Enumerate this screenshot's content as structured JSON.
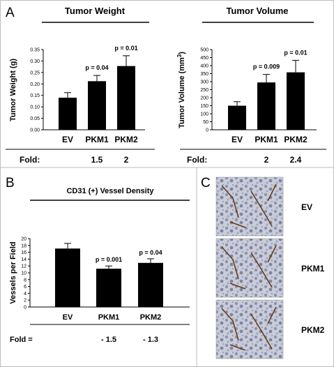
{
  "panels": {
    "a_label": "A",
    "b_label": "B",
    "c_label": "C"
  },
  "chart_data": [
    {
      "type": "bar",
      "title": "Tumor Weight",
      "ylabel": "Tumor Weight (g)",
      "xlabel": "",
      "categories": [
        "EV",
        "PKM1",
        "PKM2"
      ],
      "values": [
        0.14,
        0.212,
        0.278
      ],
      "errors": [
        0.022,
        0.025,
        0.045
      ],
      "yticks": [
        "0.00",
        "0.05",
        "0.10",
        "0.15",
        "0.20",
        "0.25",
        "0.30",
        "0.35"
      ],
      "ylim": [
        0,
        0.35
      ],
      "pvalues": [
        "",
        "p = 0.04",
        "p = 0.01"
      ],
      "fold_label": "Fold:",
      "fold": [
        "",
        "1.5",
        "2"
      ],
      "grid": false,
      "colors": {
        "bar": "#000000"
      }
    },
    {
      "type": "bar",
      "title": "Tumor Volume",
      "ylabel": "Tumor Volume (mm",
      "ylabel_sup": "3",
      "ylabel_close": ")",
      "xlabel": "",
      "categories": [
        "EV",
        "PKM1",
        "PKM2"
      ],
      "values": [
        150,
        295,
        358
      ],
      "errors": [
        25,
        50,
        75
      ],
      "yticks": [
        "0",
        "50",
        "100",
        "150",
        "200",
        "250",
        "300",
        "350",
        "400",
        "450",
        "500"
      ],
      "ylim": [
        0,
        500
      ],
      "pvalues": [
        "",
        "p = 0.009",
        "p = 0.01"
      ],
      "fold_label": "Fold:",
      "fold": [
        "",
        "2",
        "2.4"
      ],
      "grid": false,
      "colors": {
        "bar": "#000000"
      }
    },
    {
      "type": "bar",
      "title": "CD31 (+) Vessel Density",
      "ylabel": "Vessels per Field",
      "xlabel": "",
      "categories": [
        "EV",
        "PKM1",
        "PKM2"
      ],
      "values": [
        17.1,
        11.2,
        12.9
      ],
      "errors": [
        1.5,
        0.8,
        1.2
      ],
      "yticks": [
        "0",
        "2",
        "4",
        "6",
        "8",
        "10",
        "12",
        "14",
        "16",
        "18",
        "20"
      ],
      "ylim": [
        0,
        20
      ],
      "pvalues": [
        "",
        "p = 0.001",
        "p = 0.04"
      ],
      "fold_label": "Fold  =",
      "fold": [
        "",
        "- 1.5",
        "- 1.3"
      ],
      "grid": false,
      "colors": {
        "bar": "#000000"
      }
    }
  ],
  "micrographs": [
    "EV",
    "PKM1",
    "PKM2"
  ]
}
